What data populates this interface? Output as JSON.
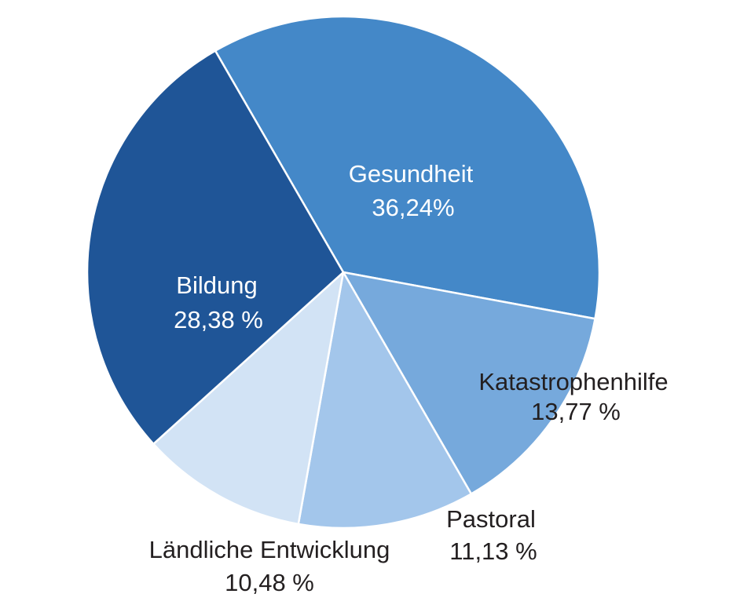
{
  "chart_data": {
    "type": "pie",
    "slices": [
      {
        "name": "Gesundheit",
        "value_label": "36,24%",
        "value": 36.24,
        "color": "#4488c8",
        "label_color": "#ffffff"
      },
      {
        "name": "Katastrophenhilfe",
        "value_label": "13,77 %",
        "value": 13.77,
        "color": "#76a9dc",
        "label_color": "#231f20"
      },
      {
        "name": "Pastoral",
        "value_label": "11,13 %",
        "value": 11.13,
        "color": "#a3c6eb",
        "label_color": "#231f20"
      },
      {
        "name": "Ländliche Entwicklung",
        "value_label": "10,48 %",
        "value": 10.48,
        "color": "#d2e3f5",
        "label_color": "#231f20"
      },
      {
        "name": "Bildung",
        "value_label": "28,38 %",
        "value": 28.38,
        "color": "#1f5597",
        "label_color": "#ffffff"
      }
    ]
  }
}
